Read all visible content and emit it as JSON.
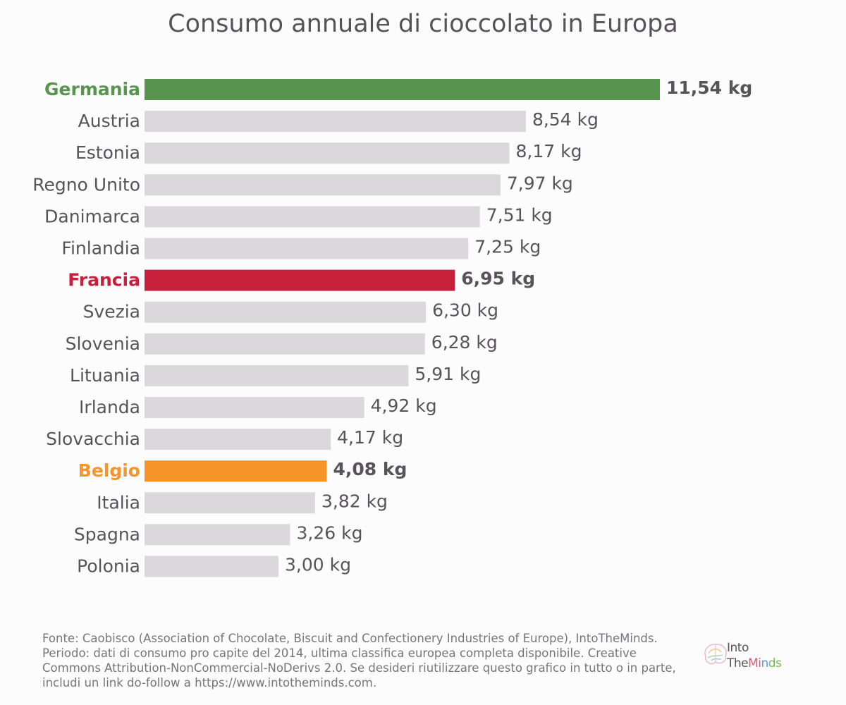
{
  "chart_data": {
    "type": "bar",
    "orientation": "horizontal",
    "title": "Consumo annuale di cioccolato in Europa",
    "unit": "kg",
    "categories": [
      "Germania",
      "Austria",
      "Estonia",
      "Regno Unito",
      "Danimarca",
      "Finlandia",
      "Francia",
      "Svezia",
      "Slovenia",
      "Lituania",
      "Irlanda",
      "Slovacchia",
      "Belgio",
      "Italia",
      "Spagna",
      "Polonia"
    ],
    "values": [
      11.54,
      8.54,
      8.17,
      7.97,
      7.51,
      7.25,
      6.95,
      6.3,
      6.28,
      5.91,
      4.92,
      4.17,
      4.08,
      3.82,
      3.26,
      3.0
    ],
    "value_labels": [
      "11,54 kg",
      "8,54 kg",
      "8,17 kg",
      "7,97 kg",
      "7,51 kg",
      "7,25 kg",
      "6,95 kg",
      "6,30 kg",
      "6,28 kg",
      "5,91 kg",
      "4,92 kg",
      "4,17 kg",
      "4,08 kg",
      "3,82 kg",
      "3,26 kg",
      "3,00 kg"
    ],
    "highlights": {
      "Germania": "#58944e",
      "Francia": "#c8203a",
      "Belgio": "#f8952a"
    },
    "default_color": "#dbd8db",
    "xlim": [
      0,
      11.54
    ],
    "grid": false,
    "legend": "none"
  },
  "source_text": "Fonte: Caobisco (Association of Chocolate, Biscuit and Confectionery Industries of Europe), IntoTheMinds. Periodo: dati di consumo pro capite del 2014, ultima classifica europea completa disponibile. Creative Commons Attribution-NonCommercial-NoDerivs 2.0. Se desideri riutilizzare questo grafico in tutto o in parte, includi un link do-follow a https://www.intotheminds.com.",
  "logo": {
    "line1": "Into",
    "line2_part1": "The",
    "line2_part2": "Mi",
    "line2_part3": "n",
    "line2_part4": "ds"
  }
}
